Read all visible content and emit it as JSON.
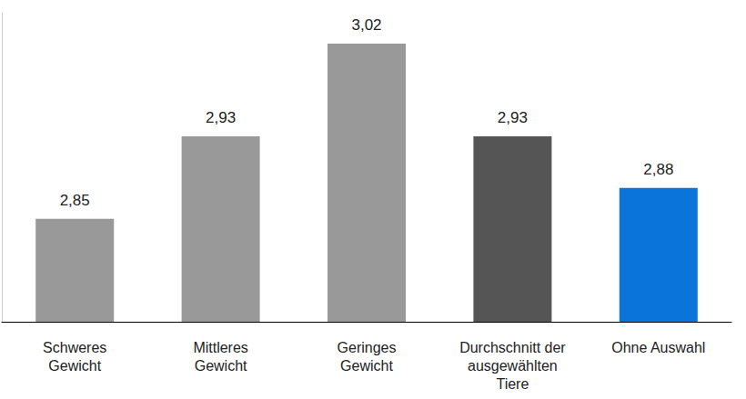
{
  "chart_data": {
    "type": "bar",
    "categories": [
      "Schweres\nGewicht",
      "Mittleres\nGewicht",
      "Geringes\nGewicht",
      "Durchschnitt der\nausgewählten\nTiere",
      "Ohne Auswahl"
    ],
    "values": [
      2.85,
      2.93,
      3.02,
      2.93,
      2.88
    ],
    "value_labels": [
      "2,85",
      "2,93",
      "3,02",
      "2,93",
      "2,88"
    ],
    "colors": [
      "#999999",
      "#999999",
      "#999999",
      "#555555",
      "#0a74da"
    ],
    "ylim": [
      2.75,
      3.05
    ],
    "grid": false,
    "data_labels": true,
    "tick_labels": "x"
  }
}
